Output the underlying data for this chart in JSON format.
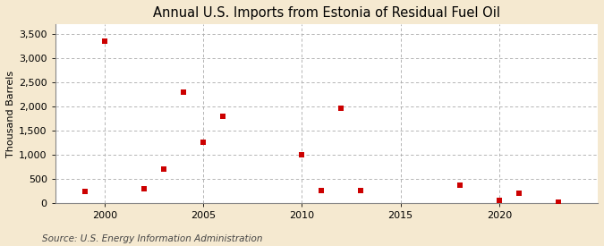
{
  "title": "Annual U.S. Imports from Estonia of Residual Fuel Oil",
  "ylabel": "Thousand Barrels",
  "source": "Source: U.S. Energy Information Administration",
  "fig_background_color": "#f5e9d0",
  "plot_background_color": "#ffffff",
  "marker_color": "#cc0000",
  "grid_color": "#aaaaaa",
  "spine_color": "#888888",
  "xlim": [
    1997.5,
    2025
  ],
  "ylim": [
    0,
    3700
  ],
  "yticks": [
    0,
    500,
    1000,
    1500,
    2000,
    2500,
    3000,
    3500
  ],
  "xticks": [
    2000,
    2005,
    2010,
    2015,
    2020
  ],
  "title_fontsize": 10.5,
  "label_fontsize": 8,
  "tick_fontsize": 8,
  "source_fontsize": 7.5,
  "data": [
    [
      1999,
      250
    ],
    [
      2000,
      3350
    ],
    [
      2002,
      300
    ],
    [
      2003,
      710
    ],
    [
      2004,
      2290
    ],
    [
      2005,
      1255
    ],
    [
      2006,
      1800
    ],
    [
      2010,
      1010
    ],
    [
      2011,
      260
    ],
    [
      2012,
      1970
    ],
    [
      2013,
      260
    ],
    [
      2018,
      370
    ],
    [
      2020,
      65
    ],
    [
      2021,
      200
    ],
    [
      2023,
      20
    ]
  ]
}
